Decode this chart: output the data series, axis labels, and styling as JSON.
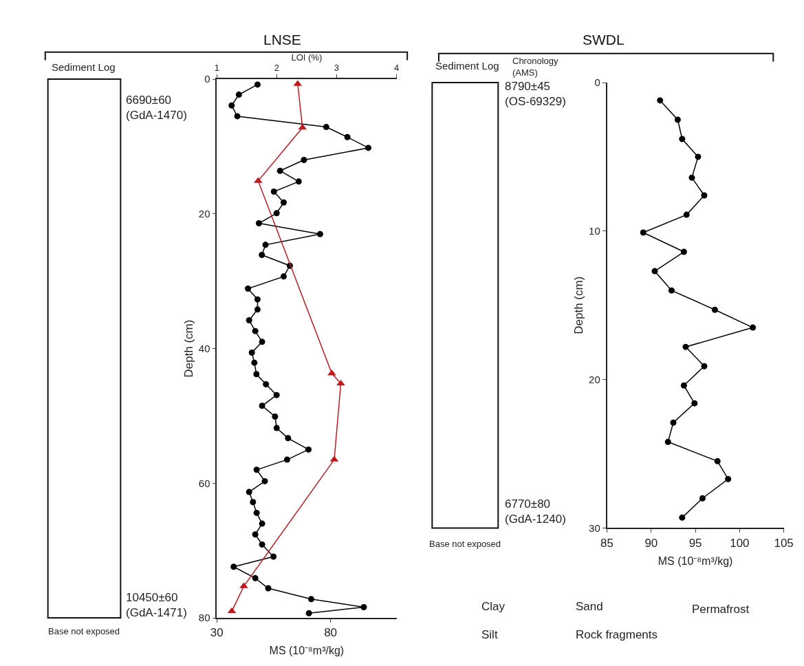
{
  "chart_data": [
    {
      "type": "line",
      "title": "LNSE",
      "xlabel": "MS (10⁻⁸m³/kg)",
      "x2label": "LOI (%)",
      "ylabel": "Depth (cm)",
      "ylim": [
        80,
        0
      ],
      "yticks": [
        0,
        20,
        40,
        60,
        80
      ],
      "xlim": [
        30,
        109
      ],
      "xticks": [
        30,
        80
      ],
      "x2lim": [
        1,
        4
      ],
      "x2ticks": [
        1,
        2,
        3,
        4
      ],
      "line_style": "solid",
      "series": [
        {
          "color": "#000000",
          "marker": "circle",
          "x": [
            47.9,
            39.7,
            36.5,
            39.0,
            78.1,
            87.4,
            96.6,
            68.3,
            57.8,
            66.0,
            55.1,
            59.4,
            56.3,
            48.5,
            75.4,
            51.4,
            49.8,
            62.1,
            59.4,
            43.7,
            47.9,
            47.9,
            44.2,
            46.9,
            49.9,
            45.4,
            46.5,
            47.4,
            51.6,
            56.3,
            49.9,
            55.6,
            56.3,
            61.3,
            70.3,
            60.9,
            47.5,
            51.1,
            44.2,
            45.9,
            47.5,
            49.9,
            46.9,
            49.9,
            54.9,
            37.4,
            46.9,
            52.6,
            71.5,
            94.6,
            70.5
          ],
          "values": [
            0.8,
            2.3,
            3.9,
            5.5,
            7.1,
            8.6,
            10.2,
            12.0,
            13.6,
            15.2,
            16.7,
            18.3,
            19.9,
            21.4,
            23.0,
            24.6,
            26.1,
            27.7,
            29.3,
            31.1,
            32.7,
            34.2,
            35.8,
            37.4,
            39.0,
            40.6,
            42.1,
            43.8,
            45.3,
            46.9,
            48.5,
            50.1,
            51.8,
            53.3,
            55.0,
            56.5,
            58.0,
            59.7,
            61.3,
            62.8,
            64.4,
            66.0,
            67.6,
            69.1,
            70.9,
            72.4,
            74.1,
            75.6,
            77.2,
            78.4,
            79.3
          ]
        },
        {
          "color": "#c0191f",
          "marker": "triangle",
          "axis": "x2",
          "x": [
            2.35,
            2.43,
            1.69,
            2.92,
            3.07,
            2.96,
            1.45,
            1.25
          ],
          "values": [
            0.7,
            7.2,
            15.1,
            43.7,
            45.2,
            56.5,
            75.3,
            79.0
          ]
        }
      ],
      "annotations": [
        "Sediment Log",
        "Base not exposed",
        "6690±60\n(GdA-1470)",
        "10450±60\n(GdA-1471)"
      ]
    },
    {
      "type": "line",
      "title": "SWDL",
      "xlabel": "MS (10⁻⁸m³/kg)",
      "ylabel": "Depth (cm)",
      "ylim": [
        30,
        0
      ],
      "yticks": [
        0,
        10,
        20,
        30
      ],
      "xlim": [
        85,
        105
      ],
      "xticks": [
        85,
        90,
        95,
        100,
        105
      ],
      "line_style": "solid",
      "series": [
        {
          "color": "#000000",
          "marker": "circle",
          "x": [
            91.0,
            93.0,
            93.5,
            95.3,
            94.6,
            96.0,
            94.0,
            89.1,
            93.7,
            90.4,
            92.3,
            97.2,
            101.5,
            93.9,
            96.0,
            93.7,
            94.9,
            92.5,
            91.9,
            97.5,
            98.7,
            95.8,
            93.5
          ],
          "values": [
            1.2,
            2.5,
            3.8,
            5.0,
            6.4,
            7.6,
            8.9,
            10.1,
            11.4,
            12.7,
            14.0,
            15.3,
            16.5,
            17.8,
            19.1,
            20.4,
            21.6,
            22.9,
            24.2,
            25.5,
            26.7,
            28.0,
            29.3
          ]
        }
      ],
      "annotations": [
        "Sediment Log",
        "Chronology\n(AMS)",
        "Base not exposed",
        "8790±45\n(OS-69329)",
        "6770±80\n(GdA-1240)",
        "Clay",
        "Silt",
        "Sand",
        "Rock fragments",
        "Permafrost"
      ]
    }
  ]
}
